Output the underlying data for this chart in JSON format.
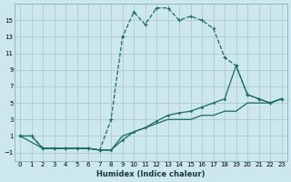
{
  "xlabel": "Humidex (Indice chaleur)",
  "bg_color": "#cce8ec",
  "grid_color": "#b0d0d4",
  "line_color": "#1a6b5a",
  "xlim": [
    -0.5,
    23.5
  ],
  "ylim": [
    -2,
    17
  ],
  "xticks": [
    0,
    1,
    2,
    3,
    4,
    5,
    6,
    7,
    8,
    9,
    10,
    11,
    12,
    13,
    14,
    15,
    16,
    17,
    18,
    19,
    20,
    21,
    22,
    23
  ],
  "yticks": [
    -1,
    1,
    3,
    5,
    7,
    9,
    11,
    13,
    15
  ],
  "series_dashed_x": [
    0,
    1,
    2,
    3,
    4,
    5,
    6,
    7,
    8,
    9,
    10,
    11,
    12,
    13,
    14,
    15,
    16,
    17,
    18,
    19,
    20,
    21,
    22,
    23
  ],
  "series_dashed_y": [
    1,
    1,
    -0.5,
    -0.5,
    -0.5,
    -0.5,
    -0.5,
    -0.7,
    3,
    13,
    16,
    14.5,
    16.5,
    16.5,
    15,
    15.5,
    15,
    14,
    10.5,
    9.5,
    6,
    5.5,
    5,
    5.5
  ],
  "series_solid1_x": [
    0,
    1,
    2,
    3,
    4,
    5,
    6,
    7,
    8,
    9,
    10,
    11,
    12,
    13,
    14,
    15,
    16,
    17,
    18,
    19,
    20,
    21,
    22,
    23
  ],
  "series_solid1_y": [
    1,
    1,
    -0.5,
    -0.5,
    -0.5,
    -0.5,
    -0.5,
    -0.7,
    -0.7,
    1,
    1.5,
    2,
    2.5,
    3,
    3,
    3,
    3.5,
    3.5,
    4,
    4,
    5,
    5,
    5,
    5.5
  ],
  "series_solid2_x": [
    0,
    2,
    3,
    4,
    5,
    6,
    7,
    8,
    9,
    10,
    11,
    12,
    13,
    14,
    15,
    16,
    17,
    18,
    19,
    20,
    21,
    22,
    23
  ],
  "series_solid2_y": [
    1,
    -0.5,
    -0.5,
    -0.5,
    -0.5,
    -0.5,
    -0.7,
    -0.7,
    0.5,
    1.5,
    2,
    2.8,
    3.5,
    3.8,
    4,
    4.5,
    5,
    5.5,
    9.5,
    6,
    5.5,
    5,
    5.5
  ]
}
